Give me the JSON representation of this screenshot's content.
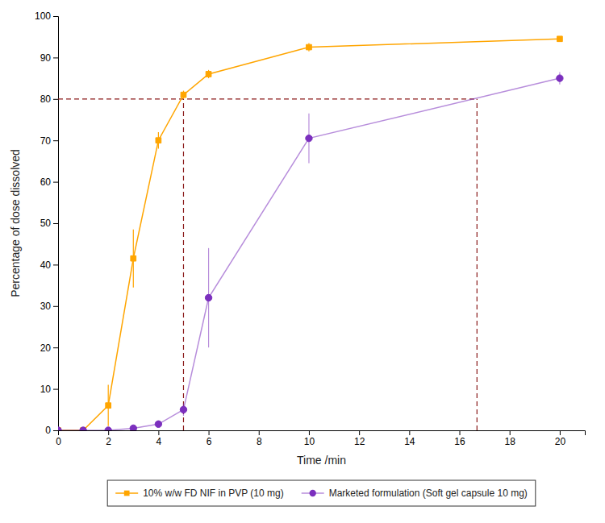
{
  "chart_data": {
    "type": "line",
    "xlabel": "Time /min",
    "ylabel": "Percentage of dose dissolved",
    "xlim": [
      0,
      21
    ],
    "ylim": [
      0,
      100
    ],
    "xticks": [
      0,
      2,
      4,
      6,
      8,
      10,
      12,
      14,
      16,
      18,
      20
    ],
    "yticks": [
      0,
      10,
      20,
      30,
      40,
      50,
      60,
      70,
      80,
      90,
      100
    ],
    "legend": "bottom",
    "series": [
      {
        "name": "10% w/w FD NIF in PVP (10 mg)",
        "color": "#FFA500",
        "marker": "square",
        "x": [
          0,
          1,
          2,
          3,
          4,
          5,
          6,
          10,
          20
        ],
        "values": [
          0,
          0,
          6,
          41.5,
          70,
          81,
          86,
          92.5,
          94.5
        ],
        "errors": [
          0,
          0,
          5,
          7,
          2,
          1,
          1,
          1,
          0.5
        ]
      },
      {
        "name": "Marketed formulation (Soft gel capsule 10 mg)",
        "color": "#7B2FBE",
        "marker": "circle",
        "x": [
          0,
          1,
          2,
          3,
          4,
          5,
          6,
          10,
          20
        ],
        "values": [
          0,
          0,
          0,
          0.5,
          1.5,
          5,
          32,
          70.5,
          85
        ],
        "errors": [
          0,
          0,
          0,
          0,
          0,
          1.5,
          12,
          6,
          1.5
        ]
      }
    ],
    "reference_lines": {
      "y": 80,
      "x": [
        5,
        16.7
      ],
      "color": "#8B1A1A",
      "line_style": "dashed"
    }
  }
}
